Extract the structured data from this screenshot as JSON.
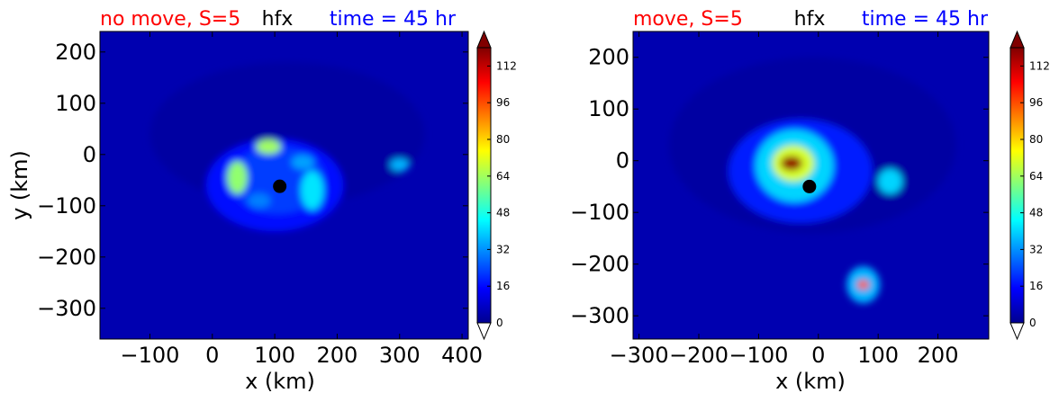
{
  "colors": {
    "title_left": "#ff0000",
    "title_center": "#000000",
    "title_right": "#0000ff",
    "background_field": "#0000b0",
    "colormap": "jet"
  },
  "chart_data": [
    {
      "type": "heatmap",
      "title_left": "no move, S=5",
      "title_center": "hfx",
      "title_right": "time = 45 hr",
      "xlabel": "x (km)",
      "ylabel": "y (km)",
      "xlim": [
        -180,
        410
      ],
      "ylim": [
        -360,
        240
      ],
      "xticks": [
        -100,
        0,
        100,
        200,
        300,
        400
      ],
      "yticks": [
        200,
        100,
        0,
        -100,
        -200,
        -300
      ],
      "colorbar": {
        "ticks": [
          0,
          16,
          32,
          48,
          64,
          80,
          96,
          112
        ],
        "range": [
          0,
          120
        ],
        "extend": "both"
      },
      "storm_center": {
        "x": 108,
        "y": -62
      },
      "features": [
        {
          "x": 120,
          "y": 40,
          "value": 4,
          "rx": 220,
          "ry": 140
        },
        {
          "x": 100,
          "y": -60,
          "value": 16,
          "rx": 110,
          "ry": 90
        },
        {
          "x": 105,
          "y": -50,
          "value": 22,
          "rx": 75,
          "ry": 65
        },
        {
          "x": 40,
          "y": -45,
          "value": 62,
          "rx": 16,
          "ry": 32
        },
        {
          "x": 90,
          "y": 15,
          "value": 64,
          "rx": 20,
          "ry": 14
        },
        {
          "x": 160,
          "y": -70,
          "value": 42,
          "rx": 18,
          "ry": 38
        },
        {
          "x": 145,
          "y": -15,
          "value": 34,
          "rx": 18,
          "ry": 14
        },
        {
          "x": 300,
          "y": -20,
          "value": 36,
          "rx": 15,
          "ry": 12
        },
        {
          "x": 75,
          "y": -90,
          "value": 30,
          "rx": 18,
          "ry": 14
        }
      ]
    },
    {
      "type": "heatmap",
      "title_left": "move, S=5",
      "title_center": "hfx",
      "title_right": "time = 45 hr",
      "xlabel": "x (km)",
      "ylabel": "",
      "xlim": [
        -310,
        285
      ],
      "ylim": [
        -345,
        250
      ],
      "xticks": [
        -300,
        -200,
        -100,
        0,
        100,
        200
      ],
      "yticks": [
        200,
        100,
        0,
        -100,
        -200,
        -300
      ],
      "colorbar": {
        "ticks": [
          0,
          16,
          32,
          48,
          64,
          80,
          96,
          112
        ],
        "range": [
          0,
          120
        ],
        "extend": "both"
      },
      "storm_center": {
        "x": -15,
        "y": -50
      },
      "features": [
        {
          "x": -10,
          "y": 30,
          "value": 4,
          "rx": 240,
          "ry": 170
        },
        {
          "x": -30,
          "y": -20,
          "value": 18,
          "rx": 120,
          "ry": 100
        },
        {
          "x": -40,
          "y": -10,
          "value": 40,
          "rx": 65,
          "ry": 70
        },
        {
          "x": -42,
          "y": -5,
          "value": 70,
          "rx": 35,
          "ry": 35
        },
        {
          "x": -45,
          "y": -5,
          "value": 118,
          "rx": 18,
          "ry": 14
        },
        {
          "x": 120,
          "y": -40,
          "value": 40,
          "rx": 20,
          "ry": 24
        },
        {
          "x": 75,
          "y": -240,
          "value": 36,
          "rx": 28,
          "ry": 36
        },
        {
          "x": 75,
          "y": -240,
          "value": 95,
          "rx": 10,
          "ry": 9
        }
      ]
    }
  ]
}
